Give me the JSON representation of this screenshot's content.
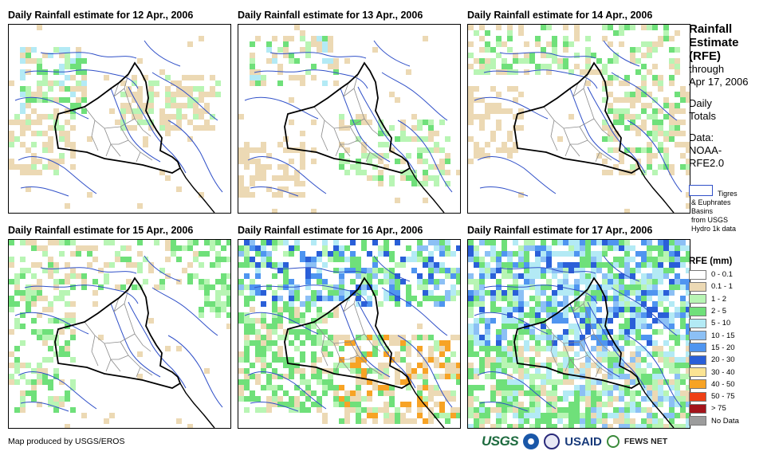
{
  "panels": [
    {
      "title": "Daily Rainfall estimate for 12 Apr., 2006"
    },
    {
      "title": "Daily Rainfall estimate for 13 Apr., 2006"
    },
    {
      "title": "Daily Rainfall estimate for 14 Apr., 2006"
    },
    {
      "title": "Daily Rainfall estimate for 15 Apr., 2006"
    },
    {
      "title": "Daily Rainfall estimate for 16 Apr., 2006"
    },
    {
      "title": "Daily Rainfall estimate for 17 Apr., 2006"
    }
  ],
  "side": {
    "title_lines": [
      "Rainfall",
      "Estimate",
      "(RFE)"
    ],
    "through_lines": [
      "through",
      "Apr 17, 2006"
    ],
    "daily_lines": [
      "Daily",
      "Totals"
    ],
    "data_lines": [
      "Data:",
      "NOAA-",
      "RFE2.0"
    ]
  },
  "basin": {
    "lines": [
      "Tigres",
      "& Euphrates",
      "Basins",
      "from USGS",
      "Hydro 1k data"
    ],
    "color": "#3050c8"
  },
  "legend": {
    "title": "RFE (mm)",
    "items": [
      {
        "label": "0 - 0.1",
        "color": "#ffffff"
      },
      {
        "label": "0.1 - 1",
        "color": "#ecd9b4"
      },
      {
        "label": "1 - 2",
        "color": "#b8f5b4"
      },
      {
        "label": "2 - 5",
        "color": "#6fe07a"
      },
      {
        "label": "5 - 10",
        "color": "#b3eaf5"
      },
      {
        "label": "10 - 15",
        "color": "#8cc0f5"
      },
      {
        "label": "15 - 20",
        "color": "#4f95f0"
      },
      {
        "label": "20 - 30",
        "color": "#2a5fd8"
      },
      {
        "label": "30 - 40",
        "color": "#fbe493"
      },
      {
        "label": "40 - 50",
        "color": "#f7a325"
      },
      {
        "label": "50 - 75",
        "color": "#ee4016"
      },
      {
        "label": "> 75",
        "color": "#a3141a"
      },
      {
        "label": "No Data",
        "color": "#9c9c9c"
      }
    ]
  },
  "footer": {
    "credit": "Map produced by USGS/EROS",
    "logos": {
      "usgs": "USGS",
      "usaid": "USAID",
      "fews": "FEWS NET"
    }
  }
}
